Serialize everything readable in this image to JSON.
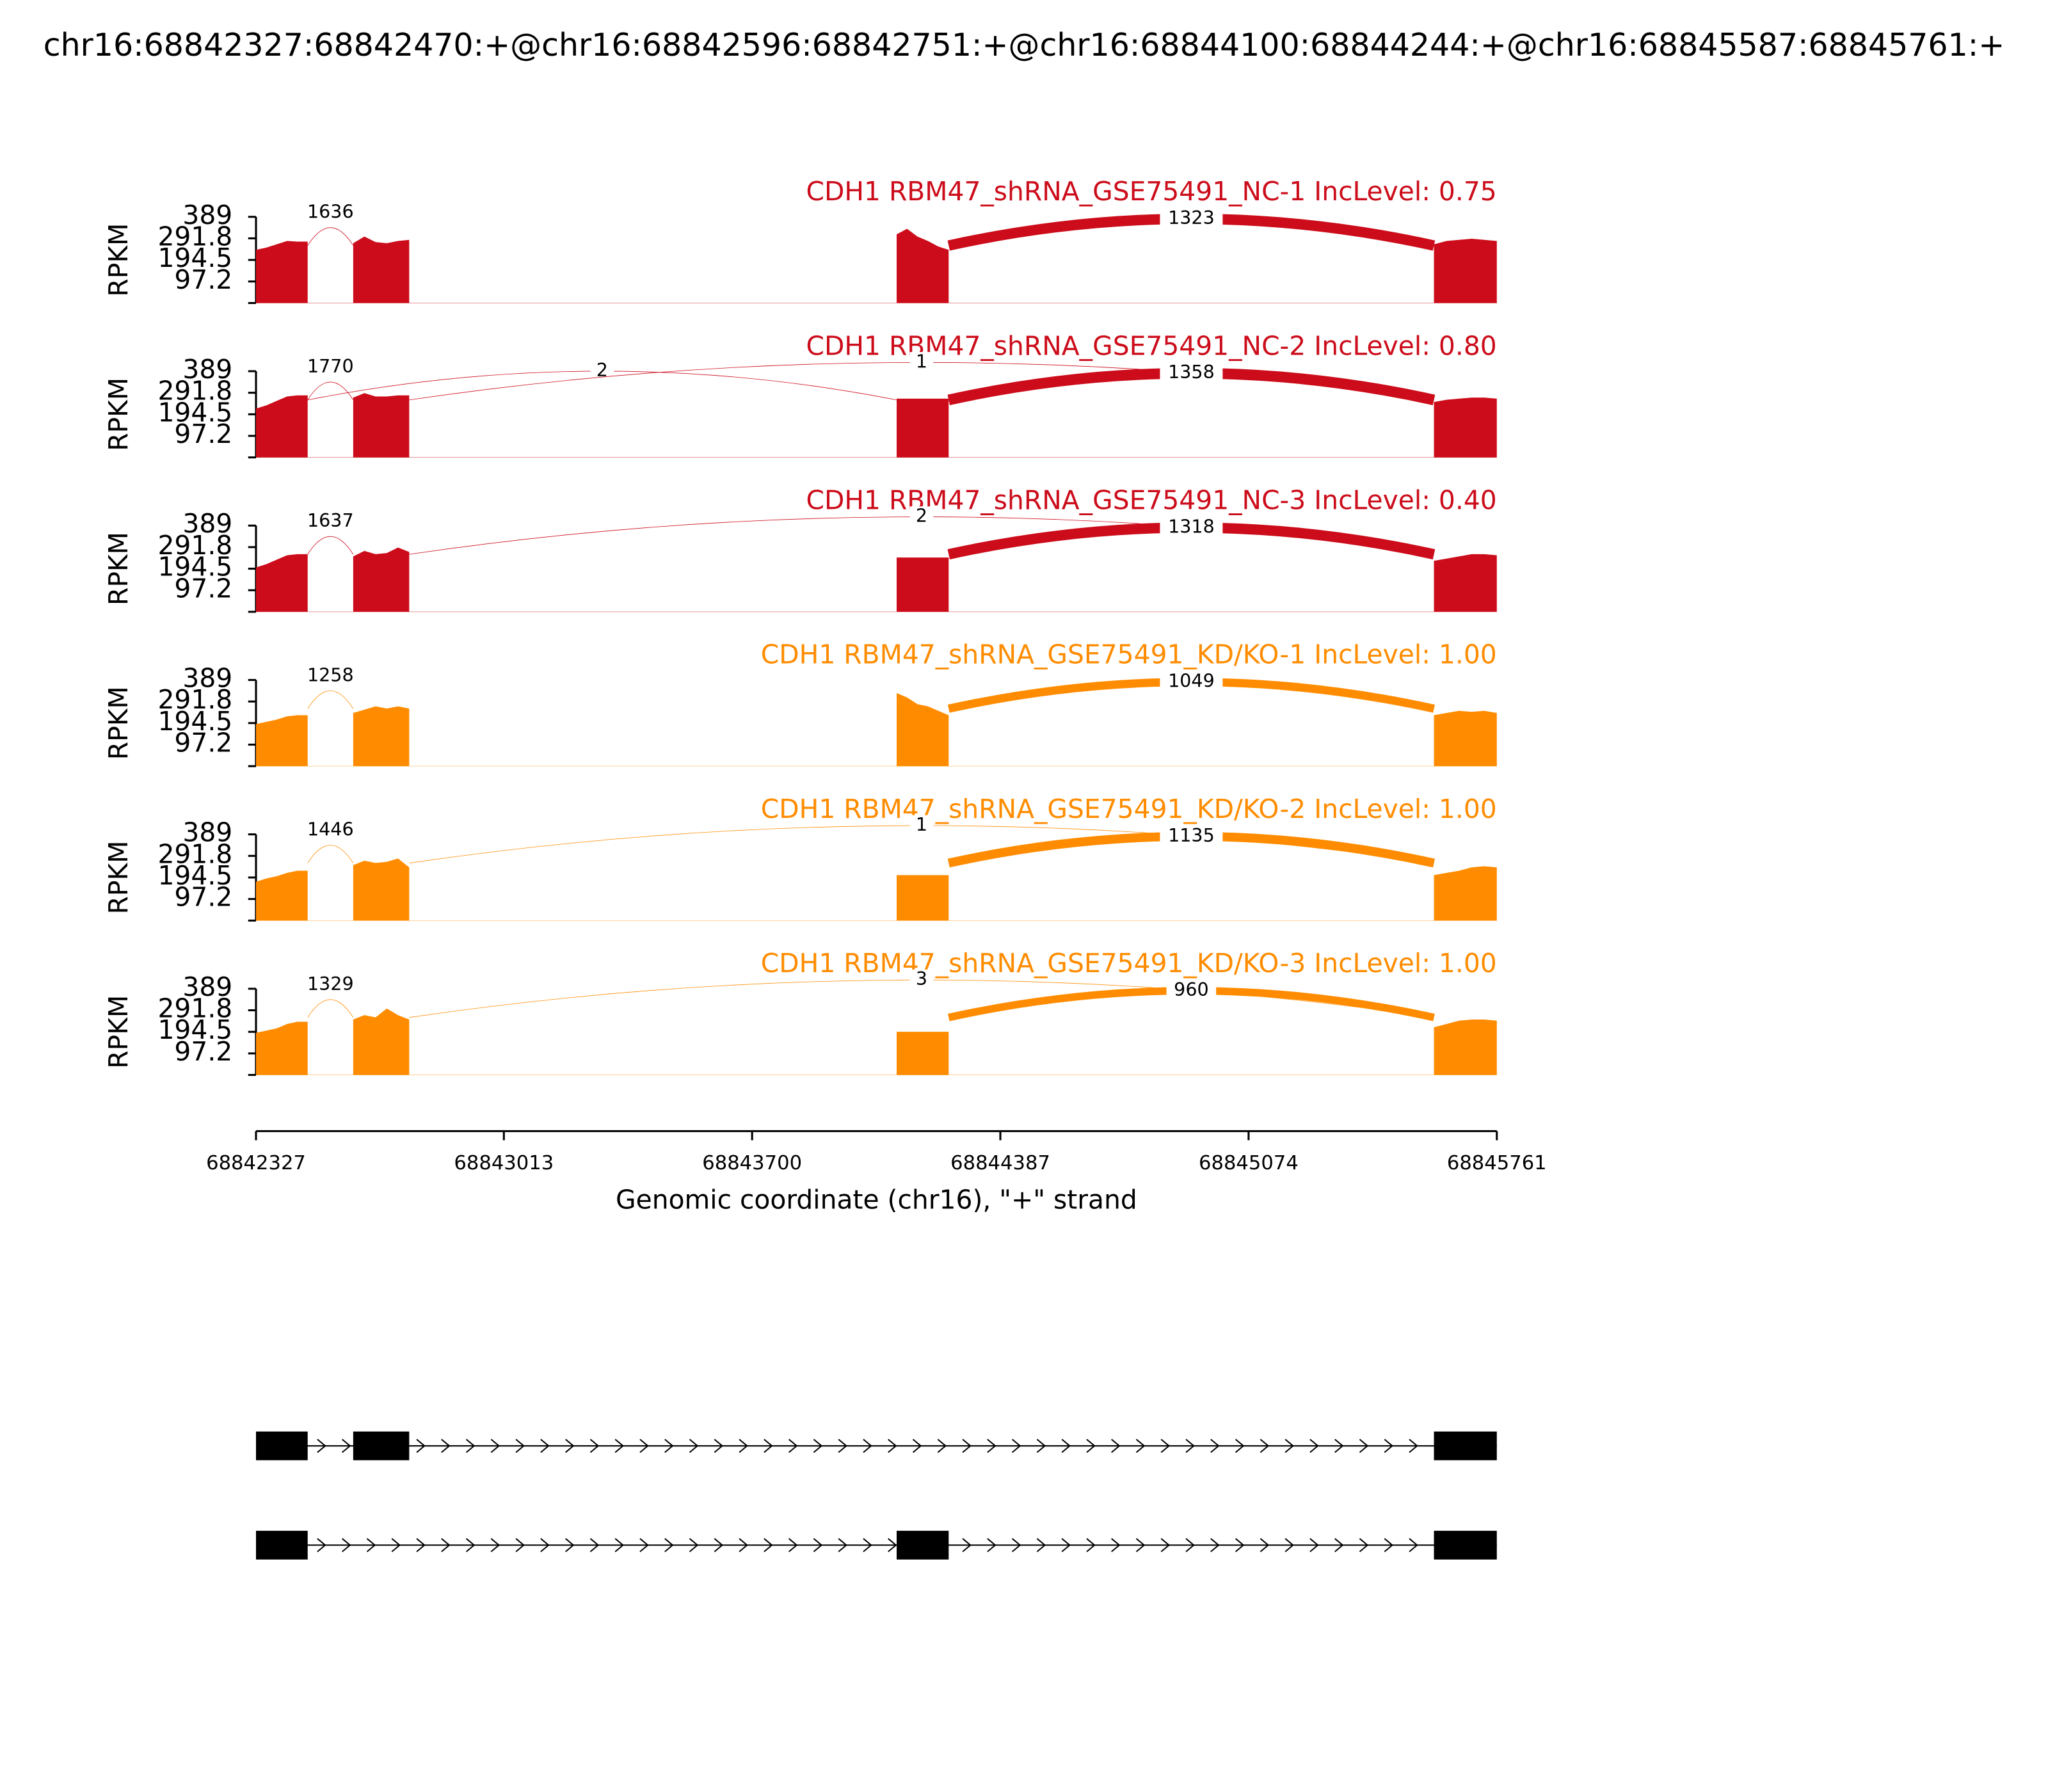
{
  "chart_data": {
    "type": "sashimi",
    "title": "chr16:68842327:68842470:+@chr16:68842596:68842751:+@chr16:68844100:68844244:+@chr16:68845587:68845761:+",
    "xlabel": "Genomic coordinate (chr16), \"+\" strand",
    "ylabel": "RPKM",
    "xlim": [
      68842327,
      68845761
    ],
    "xticks": [
      68842327,
      68843013,
      68843700,
      68844387,
      68845074,
      68845761
    ],
    "ylim": [
      0,
      389
    ],
    "yticks": [
      97.2,
      194.5,
      291.8,
      389
    ],
    "exons": [
      [
        68842327,
        68842470
      ],
      [
        68842596,
        68842751
      ],
      [
        68844100,
        68844244
      ],
      [
        68845587,
        68845761
      ]
    ],
    "tracks": [
      {
        "name": "CDH1 RBM47_shRNA_GSE75491_NC-1 IncLevel: 0.75",
        "color": "#cc0c1a",
        "coverage": [
          [
            240,
            250,
            265,
            280,
            277,
            277
          ],
          [
            270,
            300,
            275,
            270,
            280,
            285
          ],
          [
            310,
            335,
            300,
            280,
            255,
            240
          ],
          [
            265,
            280,
            285,
            290,
            285,
            280
          ]
        ],
        "junctions": [
          {
            "start": 68842470,
            "end": 68842596,
            "count": 1636
          },
          {
            "start": 68844244,
            "end": 68845587,
            "count": 1323
          }
        ]
      },
      {
        "name": "CDH1 RBM47_shRNA_GSE75491_NC-2 IncLevel: 0.80",
        "color": "#cc0c1a",
        "coverage": [
          [
            220,
            235,
            255,
            275,
            280,
            280
          ],
          [
            270,
            290,
            275,
            275,
            280,
            280
          ],
          [
            265,
            265,
            265,
            265,
            265,
            265
          ],
          [
            250,
            260,
            265,
            270,
            270,
            265
          ]
        ],
        "junctions": [
          {
            "start": 68842470,
            "end": 68842596,
            "count": 1770
          },
          {
            "start": 68842470,
            "end": 68844100,
            "count": 2
          },
          {
            "start": 68842751,
            "end": 68845587,
            "count": 1
          },
          {
            "start": 68844244,
            "end": 68845587,
            "count": 1358
          }
        ]
      },
      {
        "name": "CDH1 RBM47_shRNA_GSE75491_NC-3 IncLevel: 0.40",
        "color": "#cc0c1a",
        "coverage": [
          [
            200,
            215,
            235,
            255,
            260,
            260
          ],
          [
            250,
            275,
            260,
            265,
            290,
            270
          ],
          [
            245,
            245,
            245,
            245,
            245,
            245
          ],
          [
            230,
            240,
            250,
            260,
            260,
            255
          ]
        ],
        "junctions": [
          {
            "start": 68842470,
            "end": 68842596,
            "count": 1637
          },
          {
            "start": 68842751,
            "end": 68845587,
            "count": 2
          },
          {
            "start": 68844244,
            "end": 68845587,
            "count": 1318
          }
        ]
      },
      {
        "name": "CDH1 RBM47_shRNA_GSE75491_KD/KO-1 IncLevel: 1.00",
        "color": "#ff8c00",
        "coverage": [
          [
            190,
            200,
            210,
            225,
            230,
            230
          ],
          [
            240,
            255,
            270,
            260,
            270,
            260
          ],
          [
            330,
            310,
            280,
            270,
            250,
            230
          ],
          [
            230,
            240,
            250,
            245,
            250,
            240
          ]
        ],
        "junctions": [
          {
            "start": 68842470,
            "end": 68842596,
            "count": 1258
          },
          {
            "start": 68844244,
            "end": 68845587,
            "count": 1049
          }
        ]
      },
      {
        "name": "CDH1 RBM47_shRNA_GSE75491_KD/KO-2 IncLevel: 1.00",
        "color": "#ff8c00",
        "coverage": [
          [
            175,
            190,
            200,
            215,
            225,
            225
          ],
          [
            250,
            270,
            260,
            265,
            280,
            240
          ],
          [
            205,
            205,
            205,
            205,
            205,
            205
          ],
          [
            205,
            215,
            225,
            240,
            245,
            240
          ]
        ],
        "junctions": [
          {
            "start": 68842470,
            "end": 68842596,
            "count": 1446
          },
          {
            "start": 68842751,
            "end": 68845587,
            "count": 1
          },
          {
            "start": 68844244,
            "end": 68845587,
            "count": 1135
          }
        ]
      },
      {
        "name": "CDH1 RBM47_shRNA_GSE75491_KD/KO-3 IncLevel: 1.00",
        "color": "#ff8c00",
        "coverage": [
          [
            190,
            200,
            210,
            230,
            240,
            240
          ],
          [
            250,
            270,
            260,
            300,
            270,
            250
          ],
          [
            195,
            195,
            195,
            195,
            195,
            195
          ],
          [
            215,
            230,
            245,
            250,
            250,
            245
          ]
        ],
        "junctions": [
          {
            "start": 68842470,
            "end": 68842596,
            "count": 1329
          },
          {
            "start": 68842751,
            "end": 68845587,
            "count": 3
          },
          {
            "start": 68844244,
            "end": 68845587,
            "count": 960
          }
        ]
      }
    ],
    "isoforms": [
      [
        [
          68842327,
          68842470
        ],
        [
          68842596,
          68842751
        ],
        [
          68845587,
          68845761
        ]
      ],
      [
        [
          68842327,
          68842470
        ],
        [
          68844100,
          68844244
        ],
        [
          68845587,
          68845761
        ]
      ]
    ]
  }
}
